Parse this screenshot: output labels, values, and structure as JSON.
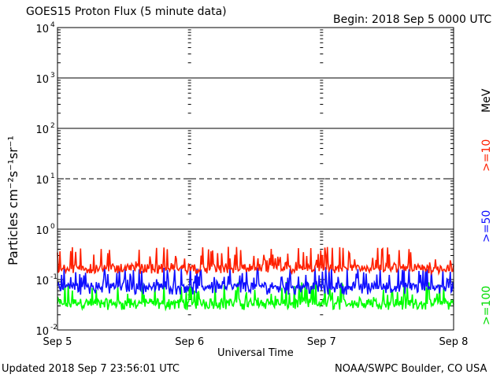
{
  "header": {
    "title": "GOES15 Proton Flux (5 minute data)",
    "begin": "Begin: 2018 Sep 5 0000 UTC"
  },
  "footer": {
    "updated": "Updated 2018 Sep  7 23:56:01 UTC",
    "source": "NOAA/SWPC Boulder, CO USA"
  },
  "chart_data": {
    "type": "line",
    "title": "GOES15 Proton Flux (5 minute data)",
    "xlabel": "Universal Time",
    "ylabel": "Particles cm⁻²s⁻¹sr⁻¹",
    "yscale": "log",
    "ylim": [
      0.01,
      10000
    ],
    "y_ticks": [
      {
        "value": 0.01,
        "base": "10",
        "exp": "-2"
      },
      {
        "value": 0.1,
        "base": "10",
        "exp": "-1"
      },
      {
        "value": 1,
        "base": "10",
        "exp": "0"
      },
      {
        "value": 10,
        "base": "10",
        "exp": "1"
      },
      {
        "value": 100,
        "base": "10",
        "exp": "2"
      },
      {
        "value": 1000,
        "base": "10",
        "exp": "3"
      },
      {
        "value": 10000,
        "base": "10",
        "exp": "4"
      }
    ],
    "x_ticks": [
      "Sep 5",
      "Sep 6",
      "Sep 7",
      "Sep 8"
    ],
    "xlim_days": [
      0,
      3
    ],
    "threshold_lines": [
      {
        "value": 1,
        "style": "solid"
      },
      {
        "value": 10,
        "style": "dashed"
      },
      {
        "value": 100,
        "style": "solid"
      },
      {
        "value": 1000,
        "style": "solid"
      }
    ],
    "unit_label": "MeV",
    "series": [
      {
        "name": ">=10",
        "color": "#ff2000",
        "baseline": 0.17,
        "spike_max": 0.45,
        "noise_low": 0.13
      },
      {
        "name": ">=50",
        "color": "#1010ff",
        "baseline": 0.075,
        "spike_max": 0.18,
        "noise_low": 0.05
      },
      {
        "name": ">=100",
        "color": "#00ff00",
        "baseline": 0.035,
        "spike_max": 0.09,
        "noise_low": 0.025
      }
    ]
  }
}
